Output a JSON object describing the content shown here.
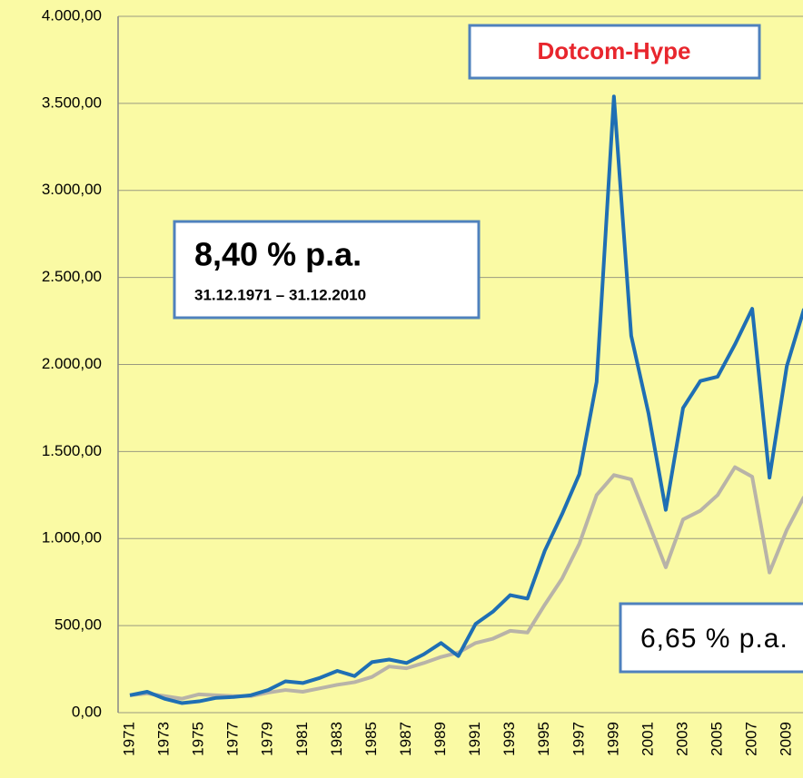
{
  "chart_data": {
    "type": "line",
    "annotations": [
      "Dotcom-Hype",
      "8,40 % p.a.",
      "31.12.1971 – 31.12.2010",
      "6,65 % p.a."
    ],
    "categories": [
      "1971",
      null,
      "1973",
      null,
      "1975",
      null,
      "1977",
      null,
      "1979",
      null,
      "1981",
      null,
      "1983",
      null,
      "1985",
      null,
      "1987",
      null,
      "1989",
      null,
      "1991",
      null,
      "1993",
      null,
      "1995",
      null,
      "1997",
      null,
      "1999",
      null,
      "2001",
      null,
      "2003",
      null,
      "2005",
      null,
      "2007",
      null,
      "2009",
      null
    ],
    "series": [
      {
        "color": "#1f6fb4",
        "values": [
          100,
          120,
          80,
          55,
          65,
          85,
          90,
          100,
          130,
          180,
          170,
          200,
          240,
          210,
          290,
          305,
          285,
          335,
          400,
          325,
          510,
          580,
          675,
          655,
          930,
          1140,
          1370,
          1900,
          3540,
          2165,
          1720,
          1165,
          1750,
          1905,
          1930,
          2115,
          2320,
          1350,
          1990,
          2320
        ]
      },
      {
        "color": "#b8b3a8",
        "values": [
          100,
          110,
          95,
          80,
          105,
          100,
          95,
          95,
          115,
          130,
          120,
          140,
          160,
          175,
          205,
          265,
          255,
          285,
          320,
          345,
          400,
          425,
          470,
          460,
          620,
          770,
          970,
          1250,
          1365,
          1340,
          1090,
          835,
          1110,
          1160,
          1250,
          1410,
          1355,
          805,
          1050,
          1240
        ]
      }
    ],
    "ylim": [
      0,
      4000
    ],
    "yticks": [
      {
        "value": 0,
        "label": "0,00"
      },
      {
        "value": 500,
        "label": "500,00"
      },
      {
        "value": 1000,
        "label": "1.000,00"
      },
      {
        "value": 1500,
        "label": "1.500,00"
      },
      {
        "value": 2000,
        "label": "2.000,00"
      },
      {
        "value": 2500,
        "label": "2.500,00"
      },
      {
        "value": 3000,
        "label": "3.000,00"
      },
      {
        "value": 3500,
        "label": "3.500,00"
      },
      {
        "value": 4000,
        "label": "4.000,00"
      }
    ],
    "grid": true
  }
}
